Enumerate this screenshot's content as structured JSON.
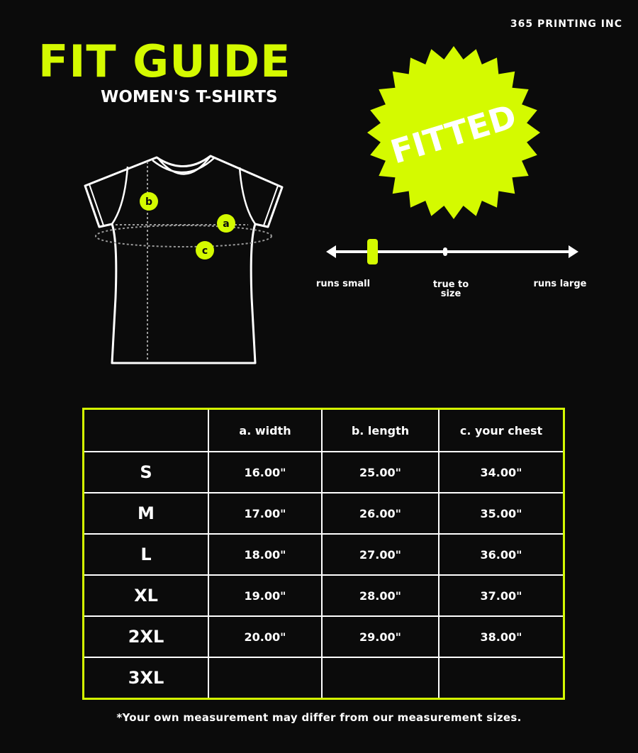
{
  "brand": "365 PRINTING INC",
  "title": "FIT GUIDE",
  "subtitle": "WOMEN'S T-SHIRTS",
  "badge": "FITTED",
  "colors": {
    "accent": "#d4fa00",
    "background": "#0b0b0b",
    "line": "#ffffff"
  },
  "diagram": {
    "labels": {
      "a": "a",
      "b": "b",
      "c": "c"
    }
  },
  "fit_scale": {
    "left": "runs small",
    "middle": "true to size",
    "right": "runs large",
    "position": 0.18
  },
  "table": {
    "headers": [
      "",
      "a. width",
      "b. length",
      "c. your chest"
    ],
    "rows": [
      {
        "size": "S",
        "width": "16.00\"",
        "length": "25.00\"",
        "chest": "34.00\""
      },
      {
        "size": "M",
        "width": "17.00\"",
        "length": "26.00\"",
        "chest": "35.00\""
      },
      {
        "size": "L",
        "width": "18.00\"",
        "length": "27.00\"",
        "chest": "36.00\""
      },
      {
        "size": "XL",
        "width": "19.00\"",
        "length": "28.00\"",
        "chest": "37.00\""
      },
      {
        "size": "2XL",
        "width": "20.00\"",
        "length": "29.00\"",
        "chest": "38.00\""
      },
      {
        "size": "3XL",
        "width": "",
        "length": "",
        "chest": ""
      }
    ]
  },
  "footnote": "*Your own measurement may differ from our measurement sizes."
}
